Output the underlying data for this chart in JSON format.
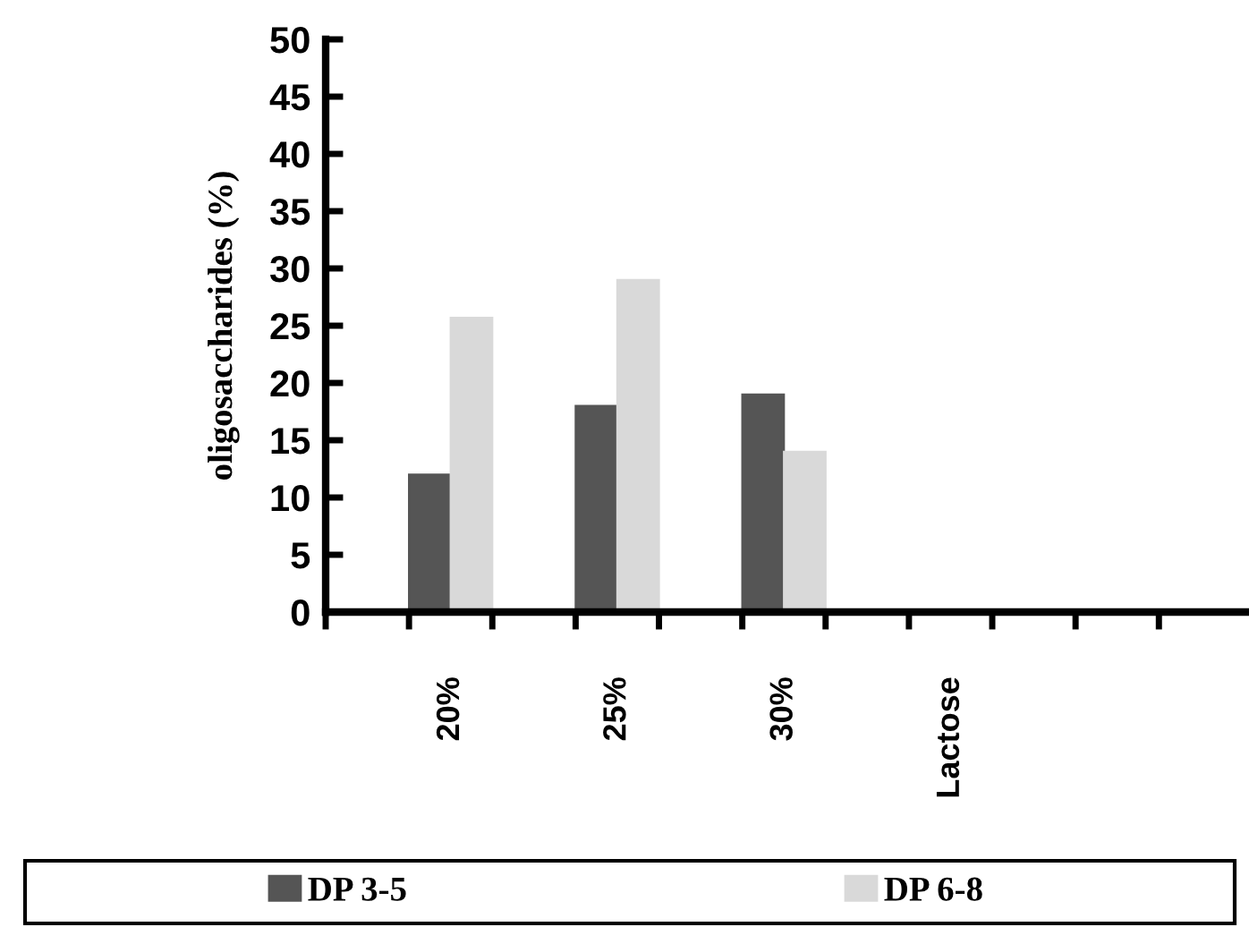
{
  "chart_data": {
    "type": "bar",
    "ylabel": "oligosaccharides (%)",
    "categories": [
      null,
      "20%",
      null,
      "25%",
      null,
      "30%",
      null,
      "Lactose",
      null,
      null,
      null
    ],
    "series": [
      {
        "name": "DP 3-5",
        "color": "#555555",
        "values": [
          null,
          12,
          null,
          18,
          null,
          19,
          null,
          null,
          null,
          null,
          null
        ]
      },
      {
        "name": "DP 6-8",
        "color": "#d9d9d9",
        "values": [
          null,
          25.7,
          null,
          29,
          null,
          14,
          null,
          null,
          null,
          null,
          null
        ]
      }
    ],
    "ylim": [
      0,
      50
    ],
    "yticks": [
      0,
      5,
      10,
      15,
      20,
      25,
      30,
      35,
      40,
      45,
      50
    ],
    "grid": false,
    "legend": "bottom"
  }
}
